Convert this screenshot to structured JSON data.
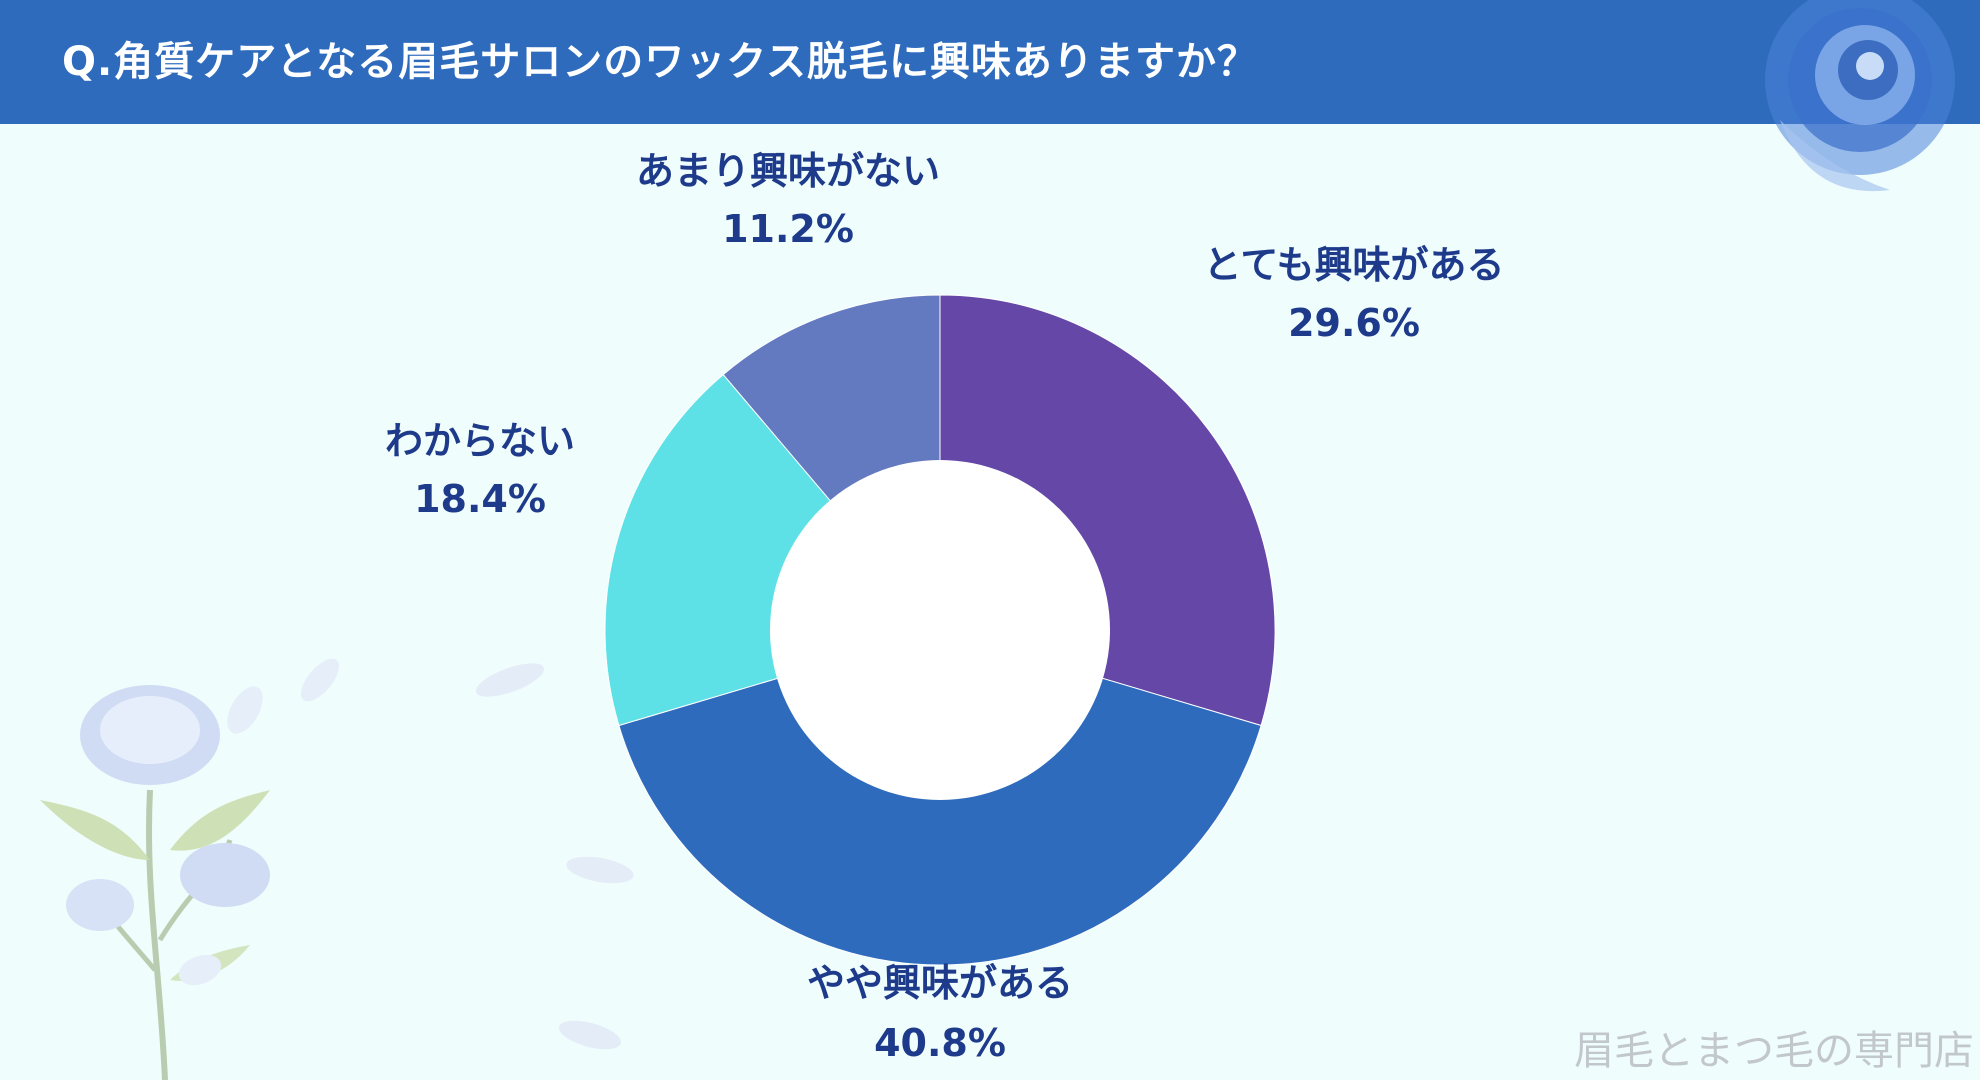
{
  "header": {
    "title": "Q.角質ケアとなる眉毛サロンのワックス脱毛に興味ありますか？"
  },
  "watermark": "眉毛とまつ毛の専門店",
  "colors": {
    "header_bg": "#2e6bbd",
    "page_bg": "#f0fdfd",
    "label_text": "#1e3a8a"
  },
  "chart_data": {
    "type": "pie",
    "donut": true,
    "title": "",
    "start": "top",
    "direction": "clockwise",
    "slices": [
      {
        "label": "とても興味がある",
        "value": 29.6,
        "value_label": "29.6%",
        "color": "#6447a6"
      },
      {
        "label": "やや興味がある",
        "value": 40.8,
        "value_label": "40.8%",
        "color": "#2e6bbd"
      },
      {
        "label": "わからない",
        "value": 18.4,
        "value_label": "18.4%",
        "color": "#5ee1e6"
      },
      {
        "label": "あまり興味がない",
        "value": 11.2,
        "value_label": "11.2%",
        "color": "#6379c0"
      }
    ]
  }
}
